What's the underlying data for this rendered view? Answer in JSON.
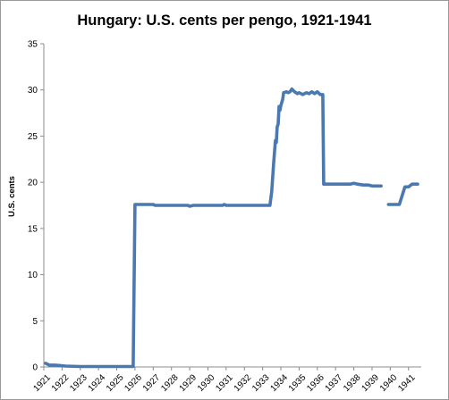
{
  "chart_data": {
    "type": "line",
    "title": "Hungary: U.S. cents per pengo, 1921-1941",
    "xlabel": "",
    "ylabel": "U.S. cents",
    "xlim": [
      1921,
      1941.7
    ],
    "ylim": [
      0,
      35
    ],
    "y_ticks": [
      0,
      5,
      10,
      15,
      20,
      25,
      30,
      35
    ],
    "x_tick_labels": [
      "1921",
      "1922",
      "1923",
      "1924",
      "1925",
      "1926",
      "1927",
      "1928",
      "1929",
      "1930",
      "1931",
      "1932",
      "1933",
      "1934",
      "1935",
      "1936",
      "1937",
      "1938",
      "1939",
      "1940",
      "1941"
    ],
    "grid": false,
    "legend": "none",
    "series_color": "#4a78b0",
    "series": [
      {
        "segments": [
          [
            [
              1921.1,
              0.4
            ],
            [
              1921.3,
              0.2
            ],
            [
              1921.6,
              0.2
            ],
            [
              1921.9,
              0.15
            ],
            [
              1922.2,
              0.1
            ],
            [
              1923.0,
              0.05
            ],
            [
              1924.0,
              0.05
            ],
            [
              1925.0,
              0.05
            ],
            [
              1925.8,
              0.05
            ],
            [
              1925.9,
              0.05
            ],
            [
              1926.0,
              17.6
            ],
            [
              1926.5,
              17.6
            ],
            [
              1927.0,
              17.6
            ],
            [
              1927.1,
              17.5
            ],
            [
              1928.0,
              17.5
            ],
            [
              1928.9,
              17.5
            ],
            [
              1929.0,
              17.4
            ],
            [
              1929.2,
              17.5
            ],
            [
              1930.0,
              17.5
            ],
            [
              1930.8,
              17.5
            ],
            [
              1930.9,
              17.6
            ],
            [
              1931.0,
              17.5
            ],
            [
              1932.0,
              17.5
            ],
            [
              1933.4,
              17.5
            ],
            [
              1933.5,
              19.0
            ],
            [
              1933.6,
              22.0
            ],
            [
              1933.7,
              24.5
            ],
            [
              1933.75,
              24.3
            ],
            [
              1933.8,
              26.0
            ],
            [
              1933.85,
              26.3
            ],
            [
              1933.9,
              28.2
            ],
            [
              1933.95,
              27.8
            ],
            [
              1934.0,
              28.3
            ],
            [
              1934.1,
              29.0
            ],
            [
              1934.15,
              29.7
            ],
            [
              1934.3,
              29.8
            ],
            [
              1934.4,
              29.7
            ],
            [
              1934.5,
              29.8
            ],
            [
              1934.6,
              30.1
            ],
            [
              1934.75,
              29.8
            ],
            [
              1934.9,
              29.6
            ],
            [
              1935.0,
              29.7
            ],
            [
              1935.2,
              29.5
            ],
            [
              1935.4,
              29.7
            ],
            [
              1935.55,
              29.6
            ],
            [
              1935.7,
              29.8
            ],
            [
              1935.85,
              29.6
            ],
            [
              1936.0,
              29.8
            ],
            [
              1936.15,
              29.5
            ],
            [
              1936.3,
              29.5
            ],
            [
              1936.35,
              19.8
            ],
            [
              1936.6,
              19.8
            ],
            [
              1937.0,
              19.8
            ],
            [
              1937.5,
              19.8
            ],
            [
              1937.8,
              19.8
            ],
            [
              1938.0,
              19.9
            ],
            [
              1938.2,
              19.8
            ],
            [
              1938.5,
              19.7
            ],
            [
              1938.8,
              19.7
            ],
            [
              1939.0,
              19.6
            ],
            [
              1939.5,
              19.6
            ]
          ],
          [
            [
              1939.9,
              17.6
            ],
            [
              1940.1,
              17.6
            ],
            [
              1940.5,
              17.6
            ],
            [
              1940.8,
              19.5
            ],
            [
              1941.0,
              19.5
            ],
            [
              1941.2,
              19.8
            ],
            [
              1941.5,
              19.8
            ]
          ]
        ]
      }
    ]
  }
}
